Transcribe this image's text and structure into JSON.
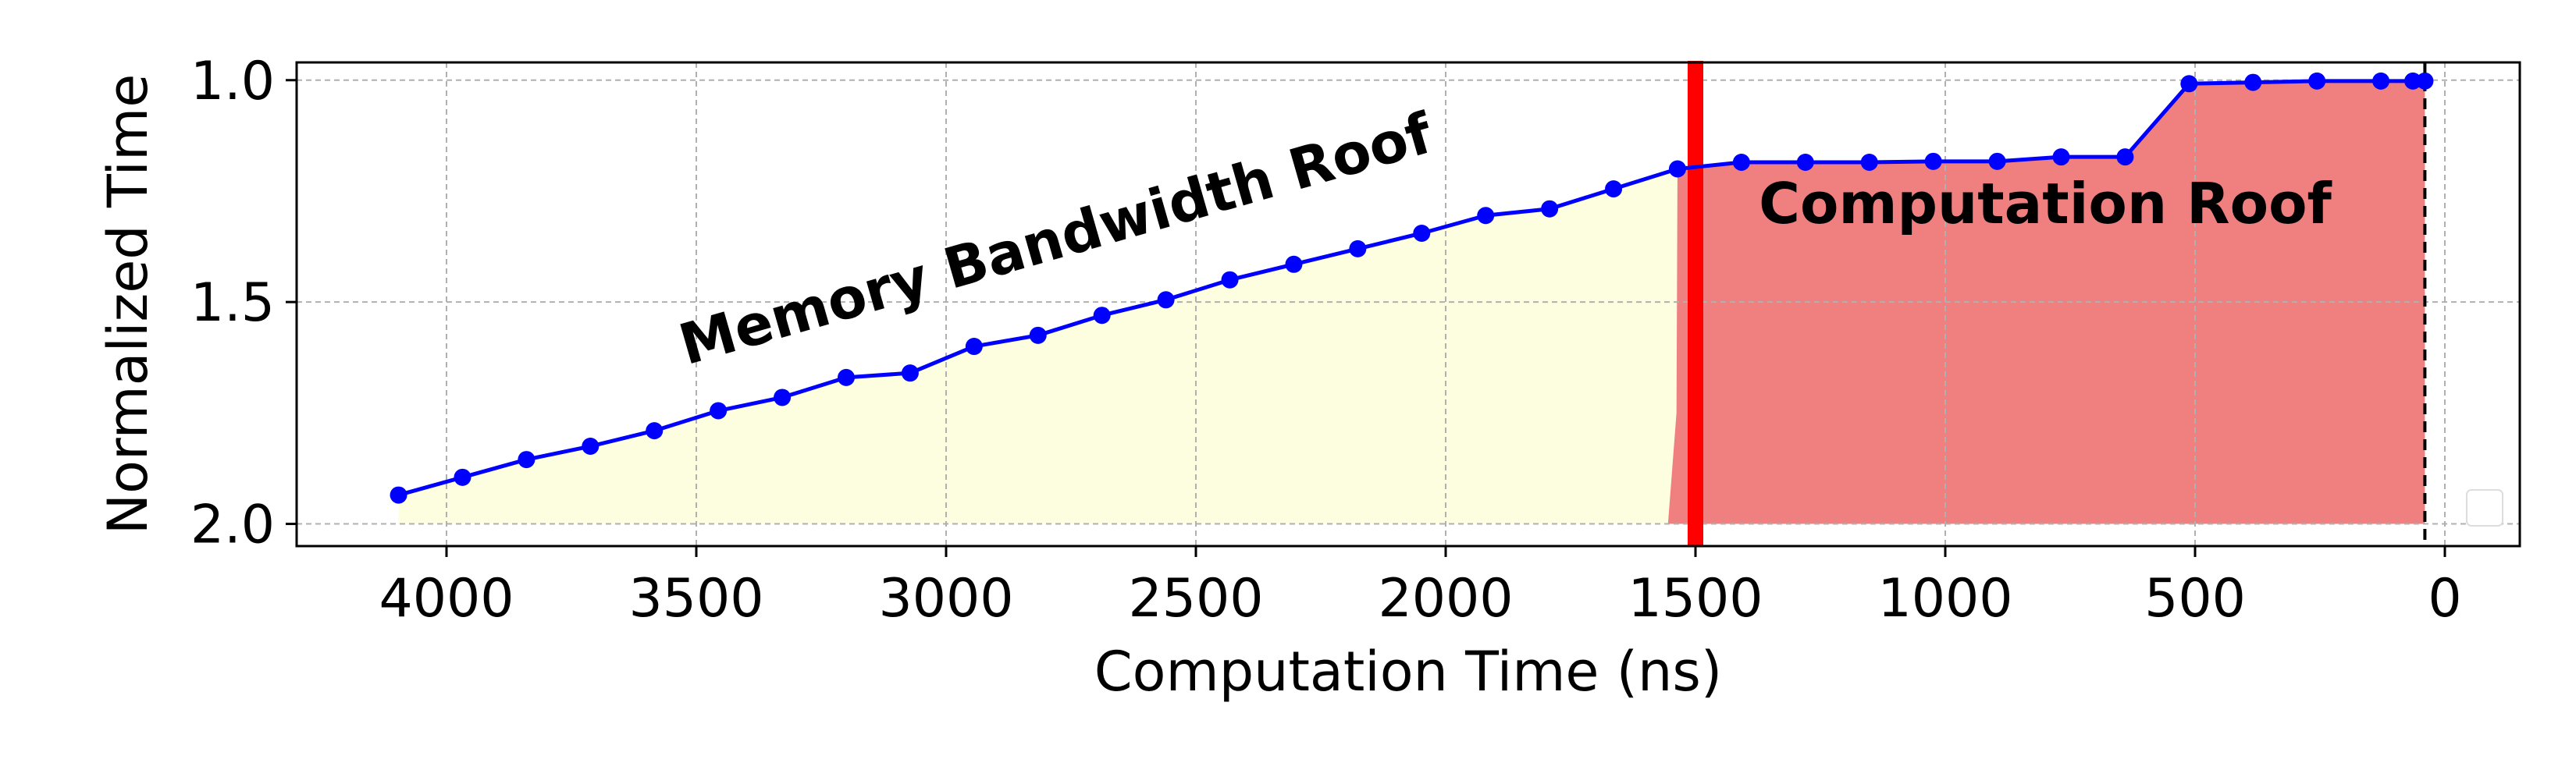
{
  "chart_data": {
    "type": "line",
    "xlabel": "Computation Time (ns)",
    "ylabel": "Normalized Time",
    "xlim": [
      4300,
      -150
    ],
    "ylim": [
      2.05,
      0.96
    ],
    "x_inverted": true,
    "y_inverted": true,
    "grid": true,
    "x_ticks": [
      4000,
      3500,
      3000,
      2500,
      2000,
      1500,
      1000,
      500,
      0
    ],
    "x_tick_labels": [
      "4000",
      "3500",
      "3000",
      "2500",
      "2000",
      "1500",
      "1000",
      "500",
      "0"
    ],
    "y_ticks": [
      1.0,
      1.5,
      2.0
    ],
    "y_tick_labels": [
      "1.0",
      "1.5",
      "2.0"
    ],
    "series": [
      {
        "color": "#0000ff",
        "marker": "circle",
        "x": [
          4096,
          3968,
          3840,
          3712,
          3584,
          3456,
          3328,
          3200,
          3072,
          2944,
          2816,
          2688,
          2560,
          2432,
          2304,
          2176,
          2048,
          1920,
          1792,
          1664,
          1536,
          1408,
          1280,
          1152,
          1024,
          896,
          768,
          640,
          512,
          384,
          256,
          128,
          64,
          40
        ],
        "y": [
          1.935,
          1.895,
          1.855,
          1.825,
          1.79,
          1.745,
          1.715,
          1.67,
          1.66,
          1.6,
          1.575,
          1.53,
          1.495,
          1.45,
          1.415,
          1.38,
          1.345,
          1.305,
          1.29,
          1.245,
          1.2,
          1.185,
          1.185,
          1.185,
          1.183,
          1.183,
          1.173,
          1.173,
          1.008,
          1.005,
          1.002,
          1.002,
          1.002,
          1.002
        ]
      }
    ],
    "regions": [
      {
        "name": "Memory Bandwidth Roof",
        "x_from": 4096,
        "x_to": 1536,
        "color": "#fdfde0"
      },
      {
        "name": "Computation Roof",
        "x_from": 1510,
        "x_to": 40,
        "color": "#f08080"
      }
    ],
    "reference_lines": [
      {
        "orientation": "vertical",
        "x": 1500,
        "color": "#ff0000",
        "style": "solid"
      },
      {
        "orientation": "vertical",
        "x": 40,
        "color": "#000000",
        "style": "dashed"
      }
    ],
    "annotations": [
      {
        "text": "Memory Bandwidth Roof",
        "x": 2770,
        "y": 1.4,
        "rotation": -16
      },
      {
        "text": "Computation Roof",
        "x": 800,
        "y": 1.28,
        "rotation": 0
      }
    ],
    "legend": {
      "placement": "bottom-right",
      "entries": []
    }
  }
}
